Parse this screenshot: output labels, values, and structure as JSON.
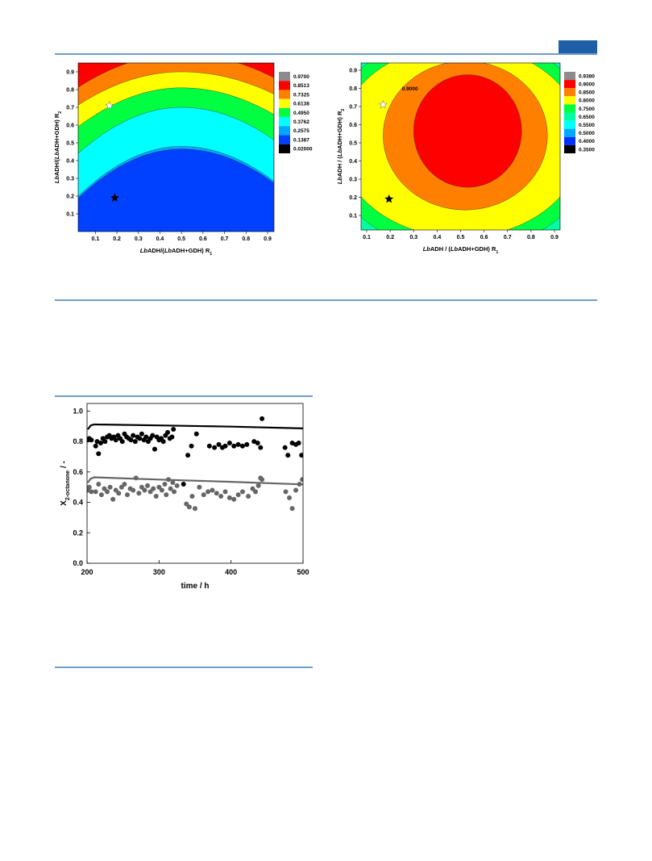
{
  "chart_data": [
    {
      "type": "contour",
      "x_label": [
        {
          "text": "Lb",
          "italic": true
        },
        {
          "text": "ADH/("
        },
        {
          "text": "Lb",
          "italic": true
        },
        {
          "text": "ADH+GDH) R"
        },
        {
          "text": "1",
          "sub": true
        }
      ],
      "y_label": [
        {
          "text": "Lb",
          "italic": true
        },
        {
          "text": "ADH/("
        },
        {
          "text": "Lb",
          "italic": true
        },
        {
          "text": "ADH+GDH) R"
        },
        {
          "text": "2",
          "sub": true
        }
      ],
      "xlim": [
        0.02,
        0.93
      ],
      "ylim": [
        0.0,
        0.95
      ],
      "xticks": [
        0.1,
        0.2,
        0.3,
        0.4,
        0.5,
        0.6,
        0.7,
        0.8,
        0.9
      ],
      "yticks": [
        0.1,
        0.2,
        0.3,
        0.4,
        0.5,
        0.6,
        0.7,
        0.8,
        0.9
      ],
      "levels": [
        {
          "value": 0.97,
          "label": "0.9700"
        },
        {
          "value": 0.8513,
          "label": "0.8513"
        },
        {
          "value": 0.7325,
          "label": "0.7325"
        },
        {
          "value": 0.6138,
          "label": "0.6138"
        },
        {
          "value": 0.495,
          "label": "0.4950"
        },
        {
          "value": 0.3762,
          "label": "0.3762"
        },
        {
          "value": 0.2575,
          "label": "0.2575"
        },
        {
          "value": 0.1387,
          "label": "0.1387"
        },
        {
          "value": 0.02,
          "label": "0.02000"
        }
      ],
      "level_colors": [
        "#8c8c8c",
        "#ff0000",
        "#ff8000",
        "#ffff00",
        "#00ff40",
        "#00ffff",
        "#00a8ff",
        "#0040ff",
        "#000000"
      ],
      "markers": {
        "x": [
          0.165,
          0.19
        ],
        "y": [
          0.71,
          0.19
        ],
        "colors": [
          "#ffffff",
          "#000000"
        ]
      }
    },
    {
      "type": "contour",
      "x_label": [
        {
          "text": "Lb",
          "italic": true
        },
        {
          "text": "ADH / ("
        },
        {
          "text": "Lb",
          "italic": true
        },
        {
          "text": "ADH+GDH) R"
        },
        {
          "text": "1",
          "sub": true
        }
      ],
      "y_label": [
        {
          "text": "Lb",
          "italic": true
        },
        {
          "text": "ADH / ("
        },
        {
          "text": "Lb",
          "italic": true
        },
        {
          "text": "ADH+GDH) R"
        },
        {
          "text": "2",
          "sub": true
        }
      ],
      "xlim": [
        0.076,
        0.924
      ],
      "ylim": [
        0.02,
        0.94
      ],
      "xticks": [
        0.1,
        0.2,
        0.3,
        0.4,
        0.5,
        0.6,
        0.7,
        0.8,
        0.9
      ],
      "yticks": [
        0.1,
        0.2,
        0.3,
        0.4,
        0.5,
        0.6,
        0.7,
        0.8,
        0.9
      ],
      "levels": [
        {
          "value": 0.938,
          "label": "0.9380"
        },
        {
          "value": 0.9,
          "label": "0.9000"
        },
        {
          "value": 0.85,
          "label": "0.8500"
        },
        {
          "value": 0.8,
          "label": "0.8000"
        },
        {
          "value": 0.75,
          "label": "0.7500"
        },
        {
          "value": 0.65,
          "label": "0.6500"
        },
        {
          "value": 0.55,
          "label": "0.5500"
        },
        {
          "value": 0.5,
          "label": "0.5000"
        },
        {
          "value": 0.4,
          "label": "0.4000"
        },
        {
          "value": 0.35,
          "label": "0.3500"
        }
      ],
      "level_colors": [
        "#8c8c8c",
        "#ff0000",
        "#ff8000",
        "#ffff00",
        "#00ff40",
        "#00ffa0",
        "#00ffff",
        "#00a8ff",
        "#0030ff",
        "#000000"
      ],
      "annotation": "0.9000",
      "markers": {
        "x": [
          0.17,
          0.195
        ],
        "y": [
          0.71,
          0.19
        ],
        "colors": [
          "#ffffff",
          "#000000"
        ]
      }
    },
    {
      "type": "scatter",
      "x_label": [
        {
          "text": "time / h"
        }
      ],
      "y_label": [
        {
          "text": "X"
        },
        {
          "text": "2-octanone",
          "sub": true
        },
        {
          "text": " / -"
        }
      ],
      "xlim": [
        200,
        500
      ],
      "ylim": [
        0,
        1.05
      ],
      "xticks": [
        200,
        300,
        400,
        500
      ],
      "yticks": [
        {
          "value": 0,
          "label": "0.0"
        },
        {
          "value": 0.2,
          "label": "0.2"
        },
        {
          "value": 0.4,
          "label": "0.4"
        },
        {
          "value": 0.6,
          "label": "0.6"
        },
        {
          "value": 0.8,
          "label": "0.8"
        },
        {
          "value": 1.0,
          "label": "1.0"
        }
      ],
      "series": [
        {
          "mode": "points",
          "color": "#000000",
          "x": [
            201,
            203,
            206,
            212,
            214,
            216,
            219,
            222,
            225,
            228,
            231,
            234,
            237,
            240,
            243,
            246,
            249,
            252,
            255,
            258,
            261,
            264,
            267,
            270,
            273,
            276,
            279,
            282,
            285,
            288,
            291,
            294,
            297,
            300,
            303,
            306,
            309,
            312,
            315,
            318,
            320,
            334,
            340,
            345,
            352,
            370,
            377,
            383,
            388,
            392,
            398,
            404,
            410,
            416,
            422,
            432,
            437,
            441,
            443,
            475,
            479,
            485,
            490,
            494,
            498
          ],
          "values": [
            0.81,
            0.82,
            0.81,
            0.77,
            0.8,
            0.72,
            0.79,
            0.82,
            0.8,
            0.83,
            0.84,
            0.82,
            0.83,
            0.81,
            0.84,
            0.82,
            0.8,
            0.85,
            0.83,
            0.82,
            0.81,
            0.84,
            0.8,
            0.83,
            0.82,
            0.85,
            0.81,
            0.83,
            0.8,
            0.82,
            0.84,
            0.75,
            0.83,
            0.81,
            0.82,
            0.8,
            0.84,
            0.86,
            0.82,
            0.83,
            0.88,
            0.52,
            0.71,
            0.77,
            0.85,
            0.77,
            0.76,
            0.78,
            0.76,
            0.77,
            0.79,
            0.77,
            0.78,
            0.77,
            0.78,
            0.8,
            0.79,
            0.76,
            0.95,
            0.76,
            0.71,
            0.79,
            0.78,
            0.79,
            0.71
          ]
        },
        {
          "mode": "points",
          "color": "#666666",
          "x": [
            201,
            203,
            206,
            212,
            216,
            220,
            224,
            228,
            232,
            236,
            240,
            244,
            248,
            252,
            256,
            260,
            264,
            268,
            272,
            276,
            280,
            284,
            288,
            292,
            296,
            300,
            304,
            308,
            310,
            313,
            316,
            319,
            321,
            325,
            338,
            342,
            346,
            350,
            356,
            362,
            368,
            374,
            380,
            386,
            392,
            398,
            404,
            410,
            416,
            424,
            430,
            434,
            438,
            441,
            443,
            476,
            481,
            485,
            490,
            495,
            499
          ],
          "values": [
            0.48,
            0.5,
            0.47,
            0.47,
            0.52,
            0.45,
            0.49,
            0.47,
            0.5,
            0.42,
            0.48,
            0.46,
            0.5,
            0.52,
            0.45,
            0.49,
            0.48,
            0.56,
            0.46,
            0.5,
            0.48,
            0.51,
            0.47,
            0.49,
            0.44,
            0.5,
            0.48,
            0.52,
            0.45,
            0.55,
            0.49,
            0.53,
            0.47,
            0.51,
            0.39,
            0.37,
            0.44,
            0.36,
            0.5,
            0.45,
            0.47,
            0.48,
            0.46,
            0.44,
            0.47,
            0.43,
            0.42,
            0.45,
            0.47,
            0.44,
            0.49,
            0.47,
            0.51,
            0.56,
            0.55,
            0.47,
            0.43,
            0.36,
            0.48,
            0.52,
            0.55
          ]
        },
        {
          "mode": "line",
          "color": "#000000",
          "x": [
            201,
            205,
            210,
            300,
            400,
            500
          ],
          "values": [
            0.88,
            0.905,
            0.912,
            0.906,
            0.898,
            0.886
          ]
        },
        {
          "mode": "line",
          "color": "#666666",
          "x": [
            201,
            205,
            210,
            300,
            400,
            500
          ],
          "values": [
            0.53,
            0.555,
            0.565,
            0.55,
            0.535,
            0.518
          ]
        }
      ]
    }
  ]
}
